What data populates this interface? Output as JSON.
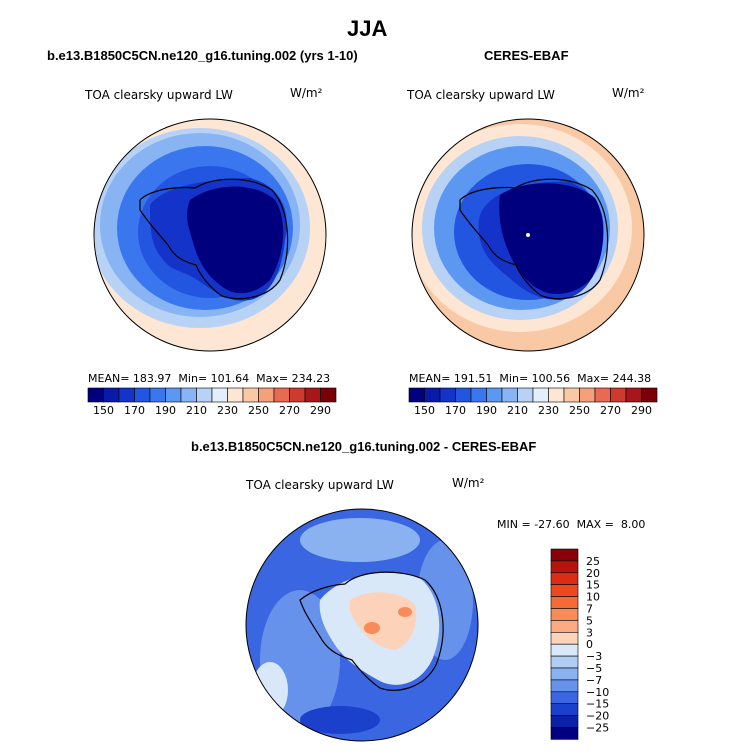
{
  "season_title": "JJA",
  "panels": [
    {
      "case_title": "b.e13.B1850C5CN.ne120_g16.tuning.002 (yrs 1-10)",
      "variable": "TOA clearsky upward LW",
      "units": "W/m²",
      "stats": {
        "mean": "183.97",
        "min": "101.64",
        "max": "234.23"
      }
    },
    {
      "case_title": "CERES-EBAF",
      "variable": "TOA clearsky upward LW",
      "units": "W/m²",
      "stats": {
        "mean": "191.51",
        "min": "100.56",
        "max": "244.38"
      }
    },
    {
      "case_title": "b.e13.B1850C5CN.ne120_g16.tuning.002 - CERES-EBAF",
      "variable": "TOA clearsky upward LW",
      "units": "W/m²",
      "stats": {
        "min": "-27.60",
        "max": "8.00"
      }
    }
  ],
  "labels": {
    "mean": "MEAN=",
    "min": "Min=",
    "max": "Max=",
    "min_caps": "MIN =",
    "max_caps": "MAX ="
  },
  "chart_data": [
    {
      "type": "heatmap",
      "projection": "south-polar-stereographic",
      "title": "b.e13.B1850C5CN.ne120_g16.tuning.002 (yrs 1-10)",
      "subtitle": "TOA clearsky upward LW",
      "units": "W/m²",
      "colorbar_orientation": "horizontal",
      "levels": [
        150,
        170,
        190,
        210,
        230,
        250,
        270,
        290
      ],
      "colorbar_colors": [
        "#00007f",
        "#0a1aa8",
        "#1433c8",
        "#2255e0",
        "#3a77ee",
        "#5c97f2",
        "#88b4f4",
        "#b8d2f6",
        "#e2eefa",
        "#fde6d4",
        "#f9c8a4",
        "#f4a07a",
        "#e96a50",
        "#cf3a2e",
        "#a6161a",
        "#7a0008"
      ],
      "mean": 183.97,
      "min": 101.64,
      "max": 234.23
    },
    {
      "type": "heatmap",
      "projection": "south-polar-stereographic",
      "title": "CERES-EBAF",
      "subtitle": "TOA clearsky upward LW",
      "units": "W/m²",
      "colorbar_orientation": "horizontal",
      "levels": [
        150,
        170,
        190,
        210,
        230,
        250,
        270,
        290
      ],
      "colorbar_colors": [
        "#00007f",
        "#0a1aa8",
        "#1433c8",
        "#2255e0",
        "#3a77ee",
        "#5c97f2",
        "#88b4f4",
        "#b8d2f6",
        "#e2eefa",
        "#fde6d4",
        "#f9c8a4",
        "#f4a07a",
        "#e96a50",
        "#cf3a2e",
        "#a6161a",
        "#7a0008"
      ],
      "mean": 191.51,
      "min": 100.56,
      "max": 244.38
    },
    {
      "type": "heatmap",
      "projection": "south-polar-stereographic",
      "title": "b.e13.B1850C5CN.ne120_g16.tuning.002 - CERES-EBAF",
      "subtitle": "TOA clearsky upward LW",
      "units": "W/m²",
      "colorbar_orientation": "vertical",
      "levels": [
        25,
        20,
        15,
        10,
        7,
        5,
        3,
        0,
        -3,
        -5,
        -7,
        -10,
        -15,
        -20,
        -25
      ],
      "level_labels": [
        "25",
        "20",
        "15",
        "10",
        "7",
        "5",
        "3",
        "0",
        "−3",
        "−5",
        "−7",
        "−10",
        "−15",
        "−20",
        "−25"
      ],
      "colorbar_colors": [
        "#8a0008",
        "#b8140e",
        "#dc2c14",
        "#ec4a1e",
        "#f66a36",
        "#f98a5a",
        "#fbaa82",
        "#fcd2b8",
        "#d8e8f8",
        "#b0cef4",
        "#8ab2f0",
        "#6692ec",
        "#3a66e2",
        "#1a40cc",
        "#0a22a8",
        "#000080"
      ],
      "min": -27.6,
      "max": 8.0
    }
  ]
}
